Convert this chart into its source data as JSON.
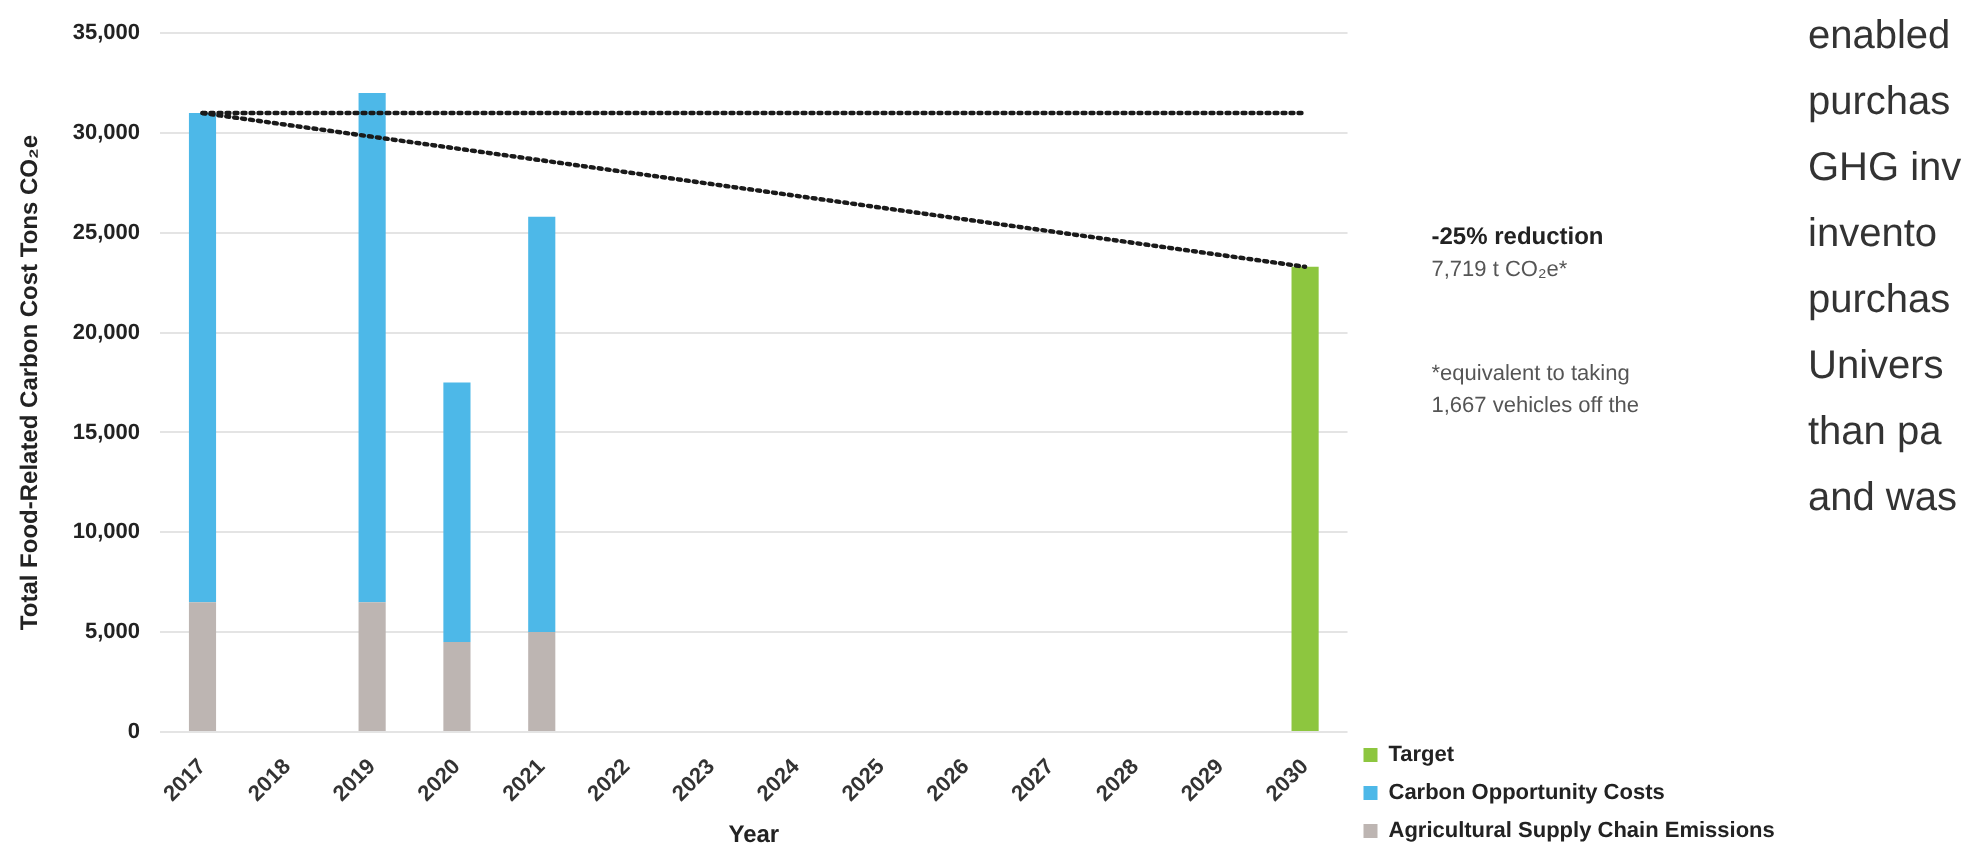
{
  "chart_data": {
    "type": "bar",
    "stacked": true,
    "xlabel": "Year",
    "ylabel": "Total Food-Related Carbon Cost Tons CO₂e",
    "categories": [
      "2017",
      "2018",
      "2019",
      "2020",
      "2021",
      "2022",
      "2023",
      "2024",
      "2025",
      "2026",
      "2027",
      "2028",
      "2029",
      "2030"
    ],
    "series": [
      {
        "name": "Agricultural Supply Chain Emissions",
        "color": "#bdb5b2",
        "values": [
          6500,
          null,
          6500,
          4500,
          5000,
          null,
          null,
          null,
          null,
          null,
          null,
          null,
          null,
          null
        ]
      },
      {
        "name": "Carbon Opportunity Costs",
        "color": "#4db8e8",
        "values": [
          24500,
          null,
          25500,
          13000,
          20800,
          null,
          null,
          null,
          null,
          null,
          null,
          null,
          null,
          null
        ]
      },
      {
        "name": "Target",
        "color": "#8dc63f",
        "values": [
          null,
          null,
          null,
          null,
          null,
          null,
          null,
          null,
          null,
          null,
          null,
          null,
          null,
          23300
        ]
      },
      {
        "type": "line",
        "color": "#1a1a1a",
        "line_style": "dotted",
        "marker": "none",
        "values": [
          31000,
          null,
          null,
          null,
          null,
          null,
          null,
          null,
          null,
          null,
          null,
          null,
          null,
          31000
        ]
      },
      {
        "type": "line",
        "color": "#1a1a1a",
        "line_style": "dotted",
        "marker": "none",
        "values": [
          31000,
          null,
          null,
          null,
          null,
          null,
          null,
          null,
          null,
          null,
          null,
          null,
          null,
          23300
        ]
      }
    ],
    "ylim": [
      0,
      35000
    ],
    "yticks": [
      0,
      {
        "value": 5000,
        "label": "5,000"
      },
      {
        "value": 10000,
        "label": "10,000"
      },
      {
        "value": 15000,
        "label": "15,000"
      },
      {
        "value": 20000,
        "label": "20,000"
      },
      {
        "value": 25000,
        "label": "25,000"
      },
      {
        "value": 30000,
        "label": "30,000"
      },
      {
        "value": 35000,
        "label": "35,000"
      }
    ],
    "grid": "y",
    "legend": "right",
    "annotations": [
      "-25% reduction",
      "7,719 t CO₂e*",
      "*equivalent to taking",
      "1,667 vehicles off the",
      "enabled",
      "purchas",
      "GHG inv",
      "invento",
      "purchas",
      "Univers",
      "than pa",
      "and was"
    ]
  }
}
